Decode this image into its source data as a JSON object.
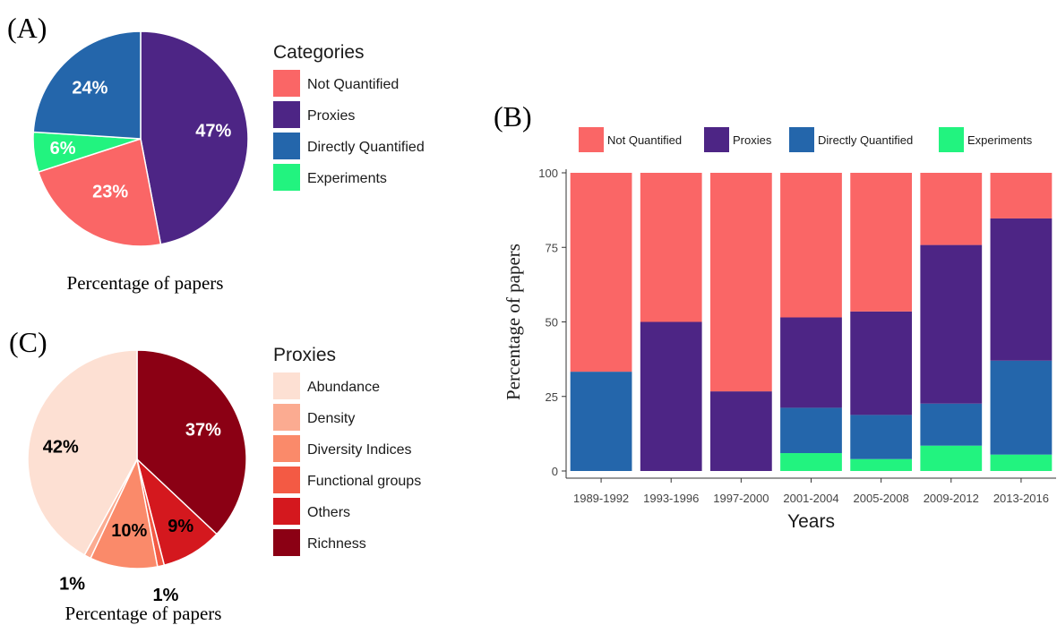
{
  "panel_labels": {
    "a": "(A)",
    "b": "(B)",
    "c": "(C)"
  },
  "pie_a": {
    "caption": "Percentage of papers",
    "legend_title": "Categories",
    "slices": [
      {
        "name": "Proxies",
        "value": 47,
        "label": "47%",
        "color": "#4d2585"
      },
      {
        "name": "Not Quantified",
        "value": 23,
        "label": "23%",
        "color": "#fa6666"
      },
      {
        "name": "Experiments",
        "value": 6,
        "label": "6%",
        "color": "#22f37f"
      },
      {
        "name": "Directly Quantified",
        "value": 24,
        "label": "24%",
        "color": "#2466ab"
      }
    ],
    "legend": [
      "Not Quantified",
      "Proxies",
      "Directly Quantified",
      "Experiments"
    ]
  },
  "pie_c": {
    "caption": "Percentage of papers",
    "legend_title": "Proxies",
    "slices": [
      {
        "name": "Richness",
        "value": 37,
        "label": "37%",
        "color": "#8b0014"
      },
      {
        "name": "Others",
        "value": 9,
        "label": "9%",
        "color": "#d4181e"
      },
      {
        "name": "Functional groups",
        "value": 1,
        "label": "1%",
        "color": "#f35a44"
      },
      {
        "name": "Diversity Indices",
        "value": 10,
        "label": "10%",
        "color": "#fa8a6a"
      },
      {
        "name": "Density",
        "value": 1,
        "label": "1%",
        "color": "#fbab91"
      },
      {
        "name": "Abundance",
        "value": 42,
        "label": "42%",
        "color": "#fde0d3"
      }
    ],
    "legend": [
      "Abundance",
      "Density",
      "Diversity Indices",
      "Functional groups",
      "Others",
      "Richness"
    ]
  },
  "chart_data": [
    {
      "type": "pie",
      "title": "",
      "caption": "Percentage of papers",
      "legend_title": "Categories",
      "slices": [
        {
          "name": "Proxies",
          "value": 47
        },
        {
          "name": "Not Quantified",
          "value": 23
        },
        {
          "name": "Experiments",
          "value": 6
        },
        {
          "name": "Directly Quantified",
          "value": 24
        }
      ]
    },
    {
      "type": "bar",
      "stacked": true,
      "title": "",
      "xlabel": "Years",
      "ylabel": "Percentage of papers",
      "ylim": [
        0,
        100
      ],
      "yticks": [
        0,
        25,
        50,
        75,
        100
      ],
      "legend_position": "top",
      "grid": false,
      "categories": [
        "1989-1992",
        "1993-1996",
        "1997-2000",
        "2001-2004",
        "2005-2008",
        "2009-2012",
        "2013-2016"
      ],
      "series": [
        {
          "name": "Experiments",
          "color": "#22f37f",
          "values": [
            0,
            0,
            0,
            6,
            4,
            8.5,
            5.5
          ]
        },
        {
          "name": "Directly Quantified",
          "color": "#2466ab",
          "values": [
            33.3,
            0,
            0,
            15.2,
            14.8,
            14.1,
            31.5
          ]
        },
        {
          "name": "Proxies",
          "color": "#4d2585",
          "values": [
            0,
            50,
            26.7,
            30.3,
            34.7,
            53.2,
            47.7
          ]
        },
        {
          "name": "Not Quantified",
          "color": "#fa6666",
          "values": [
            66.7,
            50,
            73.3,
            48.5,
            46.5,
            24.2,
            15.3
          ]
        }
      ],
      "legend_order": [
        "Not Quantified",
        "Proxies",
        "Directly Quantified",
        "Experiments"
      ]
    },
    {
      "type": "pie",
      "title": "",
      "caption": "Percentage of papers",
      "legend_title": "Proxies",
      "slices": [
        {
          "name": "Richness",
          "value": 37
        },
        {
          "name": "Others",
          "value": 9
        },
        {
          "name": "Functional groups",
          "value": 1
        },
        {
          "name": "Diversity Indices",
          "value": 10
        },
        {
          "name": "Density",
          "value": 1
        },
        {
          "name": "Abundance",
          "value": 42
        }
      ]
    }
  ]
}
